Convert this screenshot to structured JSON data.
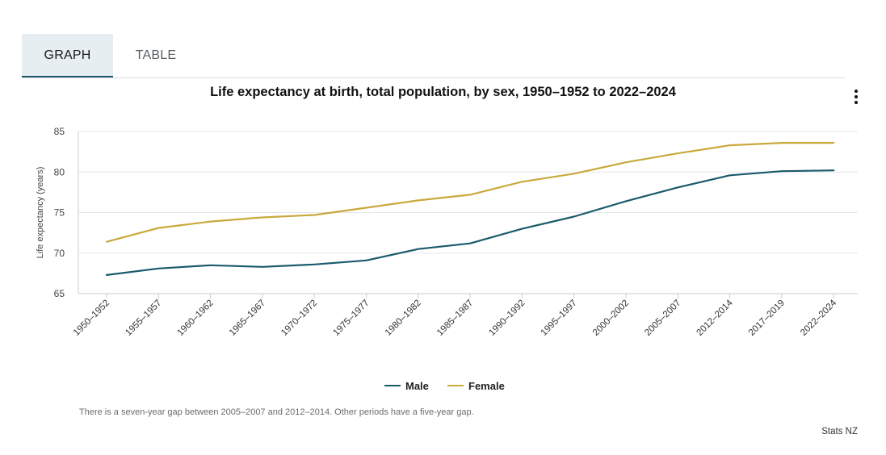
{
  "tabs": {
    "graph": "GRAPH",
    "table": "TABLE"
  },
  "menu_icon": "more-vertical-icon",
  "note": "There is a seven-year gap between 2005–2007 and 2012–2014. Other periods have a five-year gap.",
  "credit": "Stats NZ",
  "colors": {
    "male": "#1b5a6b",
    "female": "#c9a93c",
    "tab_active_bg": "#e6eef2",
    "tab_underline": "#1d5a6e"
  },
  "chart_data": {
    "type": "line",
    "title": "Life expectancy at birth, total population, by sex, 1950–1952 to 2022–2024",
    "xlabel": "",
    "ylabel": "Life expectancy (years)",
    "ylim": [
      65,
      85
    ],
    "yticks": [
      65,
      70,
      75,
      80,
      85
    ],
    "grid": true,
    "legend_position": "bottom-center",
    "categories": [
      "1950–1952",
      "1955–1957",
      "1960–1962",
      "1965–1967",
      "1970–1972",
      "1975–1977",
      "1980–1982",
      "1985–1987",
      "1990–1992",
      "1995–1997",
      "2000–2002",
      "2005–2007",
      "2012–2014",
      "2017–2019",
      "2022–2024"
    ],
    "series": [
      {
        "name": "Male",
        "color": "#1b5a6b",
        "values": [
          67.3,
          68.1,
          68.5,
          68.3,
          68.6,
          69.1,
          70.5,
          71.2,
          73.0,
          74.5,
          76.4,
          78.1,
          79.6,
          80.1,
          80.2
        ]
      },
      {
        "name": "Female",
        "color": "#c9a93c",
        "values": [
          71.4,
          73.1,
          73.9,
          74.4,
          74.7,
          75.6,
          76.5,
          77.2,
          78.8,
          79.8,
          81.2,
          82.3,
          83.3,
          83.6,
          83.6
        ]
      }
    ]
  }
}
